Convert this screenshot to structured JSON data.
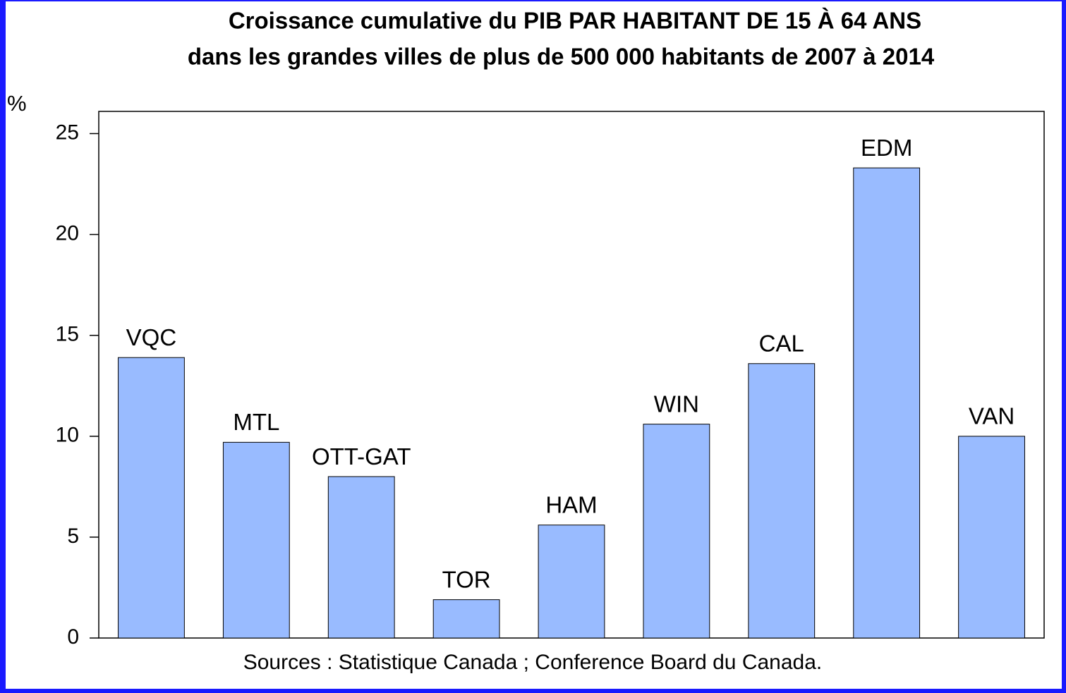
{
  "chart_data": {
    "type": "bar",
    "title": [
      "Croissance cumulative du PIB PAR HABITANT DE 15 À 64 ANS",
      "dans les grandes villes de plus de 500 000 habitants de 2007 à 2014"
    ],
    "y_label": "%",
    "source": "Sources : Statistique Canada ; Conference Board du Canada.",
    "categories": [
      "VQC",
      "MTL",
      "OTT-GAT",
      "TOR",
      "HAM",
      "WIN",
      "CAL",
      "EDM",
      "VAN"
    ],
    "values": [
      13.9,
      9.7,
      8.0,
      1.9,
      5.6,
      10.6,
      13.6,
      23.3,
      10.0
    ],
    "color": "#99bbff",
    "ylim": [
      0,
      26.1
    ],
    "yticks": [
      0,
      5,
      10,
      15,
      20,
      25
    ],
    "grid": false
  }
}
